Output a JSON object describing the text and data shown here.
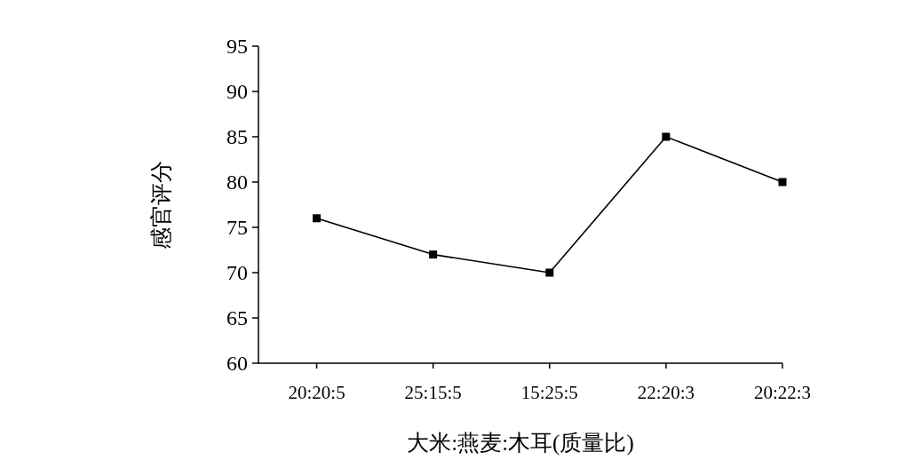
{
  "chart_data": {
    "type": "line",
    "xlabel": "大米:燕麦:木耳(质量比)",
    "ylabel": "感官评分",
    "categories": [
      "20:20:5",
      "25:15:5",
      "15:25:5",
      "22:20:3",
      "20:22:3"
    ],
    "series": [
      {
        "color": "#000000",
        "values": [
          76,
          72,
          70,
          85,
          80
        ]
      }
    ],
    "ylim": [
      60,
      95
    ],
    "yticks": [
      60,
      65,
      70,
      75,
      80,
      85,
      90,
      95
    ],
    "marker": "square",
    "line_style": "solid"
  }
}
